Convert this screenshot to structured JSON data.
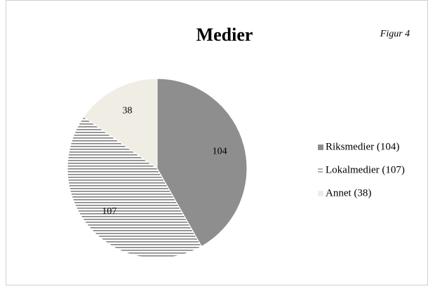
{
  "chart_data": {
    "type": "pie",
    "title": "Medier",
    "annotation": "Figur 4",
    "series": [
      {
        "name": "Riksmedier (104)",
        "color": "#8e8e8e",
        "value": 104
      },
      {
        "name": "Lokalmedier (107)",
        "color": "#7a7a7a",
        "pattern": "horizontal-stripes",
        "value": 107
      },
      {
        "name": "Annet (38)",
        "color": "#f0ede4",
        "value": 38
      }
    ],
    "legend": "right"
  }
}
